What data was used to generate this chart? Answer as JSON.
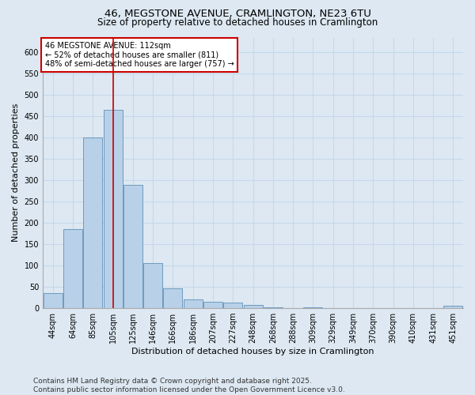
{
  "title1": "46, MEGSTONE AVENUE, CRAMLINGTON, NE23 6TU",
  "title2": "Size of property relative to detached houses in Cramlington",
  "xlabel": "Distribution of detached houses by size in Cramlington",
  "ylabel": "Number of detached properties",
  "categories": [
    "44sqm",
    "64sqm",
    "85sqm",
    "105sqm",
    "125sqm",
    "146sqm",
    "166sqm",
    "186sqm",
    "207sqm",
    "227sqm",
    "248sqm",
    "268sqm",
    "288sqm",
    "309sqm",
    "329sqm",
    "349sqm",
    "370sqm",
    "390sqm",
    "410sqm",
    "431sqm",
    "451sqm"
  ],
  "values": [
    35,
    185,
    400,
    465,
    290,
    105,
    47,
    20,
    15,
    13,
    7,
    2,
    1,
    2,
    1,
    1,
    1,
    1,
    0,
    1,
    5
  ],
  "bar_color": "#b8d0e8",
  "bar_edge_color": "#6090b8",
  "grid_color": "#c8d8ea",
  "background_color": "#dde8f2",
  "vline_x": 3.0,
  "vline_color": "#cc0000",
  "annotation_text": "46 MEGSTONE AVENUE: 112sqm\n← 52% of detached houses are smaller (811)\n48% of semi-detached houses are larger (757) →",
  "annotation_box_color": "white",
  "annotation_box_edge": "#cc0000",
  "footnote": "Contains HM Land Registry data © Crown copyright and database right 2025.\nContains public sector information licensed under the Open Government Licence v3.0.",
  "ylim": [
    0,
    635
  ],
  "yticks": [
    0,
    50,
    100,
    150,
    200,
    250,
    300,
    350,
    400,
    450,
    500,
    550,
    600
  ],
  "title_fontsize": 9.5,
  "subtitle_fontsize": 8.5,
  "axis_label_fontsize": 8,
  "tick_fontsize": 7,
  "annotation_fontsize": 7,
  "footnote_fontsize": 6.5,
  "figsize": [
    6.0,
    5.0
  ],
  "dpi": 100
}
